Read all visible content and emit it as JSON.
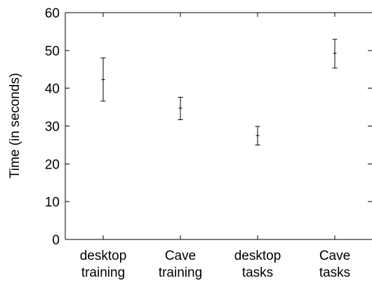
{
  "chart_data": {
    "type": "scatter",
    "title": "",
    "xlabel": "",
    "ylabel": "Time (in seconds)",
    "ylim": [
      0,
      60
    ],
    "yticks": [
      0,
      10,
      20,
      30,
      40,
      50,
      60
    ],
    "grid": false,
    "categories": [
      [
        "desktop",
        "training"
      ],
      [
        "Cave",
        "training"
      ],
      [
        "desktop",
        "tasks"
      ],
      [
        "Cave",
        "tasks"
      ]
    ],
    "series": [
      {
        "values": [
          42.3,
          34.7,
          27.5,
          49.2
        ],
        "error_low": [
          36.6,
          31.7,
          25.0,
          45.3
        ],
        "error_high": [
          48.0,
          37.6,
          29.9,
          52.9
        ]
      }
    ],
    "marker": "+",
    "error_bars": true
  }
}
